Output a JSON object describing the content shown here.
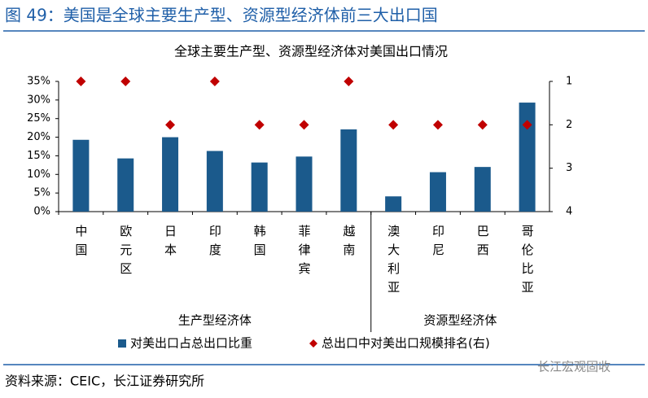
{
  "figure_title": "图 49：美国是全球主要生产型、资源型经济体前三大出口国",
  "source": "资料来源：CEIC，长江证券研究所",
  "watermark": "长江宏观固收",
  "chart_data": {
    "type": "bar_dot",
    "title": "全球主要生产型、资源型经济体对美国出口情况",
    "categories": [
      "中国",
      "欧元区",
      "日本",
      "印度",
      "韩国",
      "菲律宾",
      "越南",
      "澳大利亚",
      "印尼",
      "巴西",
      "哥伦比亚"
    ],
    "groups": [
      {
        "name": "生产型经济体",
        "count": 7
      },
      {
        "name": "资源型经济体",
        "count": 4
      }
    ],
    "series": [
      {
        "name": "对美出口占总出口比重",
        "color": "#1b5a8c",
        "values": [
          19.3,
          14.3,
          20,
          16.3,
          13.2,
          14.8,
          22.1,
          4.1,
          10.6,
          12,
          29.3
        ]
      },
      {
        "name": "总出口中对美出口规模排名(右)",
        "color": "#c00000",
        "axis": "y2",
        "values": [
          1,
          1,
          2,
          1,
          2,
          2,
          1,
          2,
          2,
          2,
          2
        ]
      }
    ],
    "ylim": [
      0,
      35
    ],
    "yticks": [
      {
        "value": 0,
        "label": "0%"
      },
      {
        "value": 5,
        "label": "5%"
      },
      {
        "value": 10,
        "label": "10%"
      },
      {
        "value": 15,
        "label": "15%"
      },
      {
        "value": 20,
        "label": "20%"
      },
      {
        "value": 25,
        "label": "25%"
      },
      {
        "value": 30,
        "label": "30%"
      },
      {
        "value": 35,
        "label": "35%"
      }
    ],
    "y2lim": [
      4,
      1
    ],
    "y2ticks": [
      1,
      2,
      3,
      4
    ]
  }
}
